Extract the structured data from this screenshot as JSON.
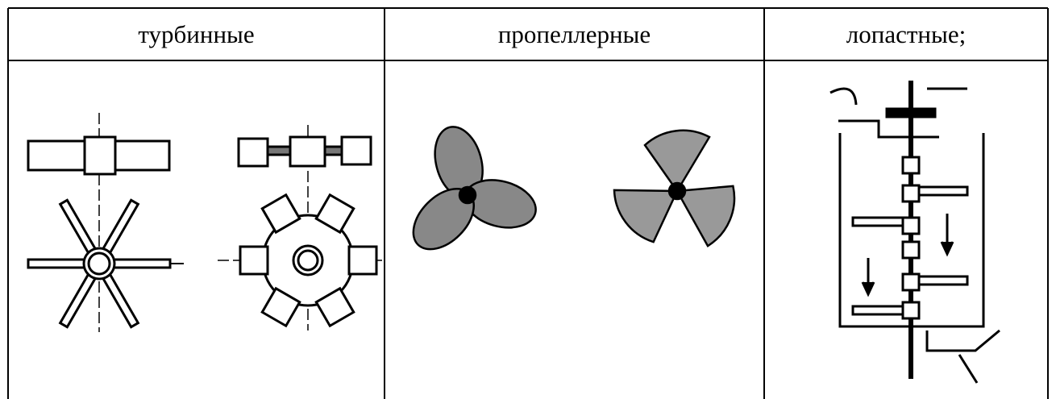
{
  "table": {
    "headers": [
      "турбинные",
      "пропеллерные",
      "лопастные;"
    ]
  }
}
